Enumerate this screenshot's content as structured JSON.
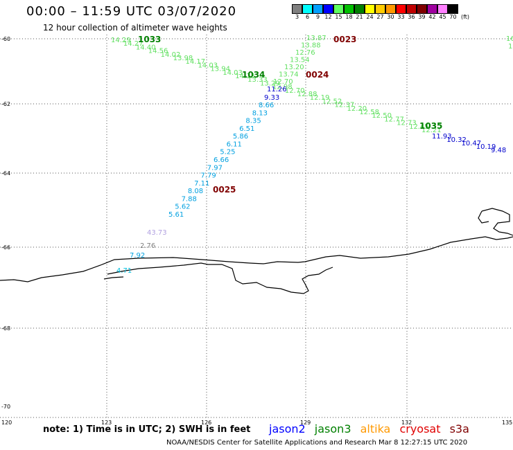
{
  "header": {
    "title": "00:00 – 11:59 UTC 03/07/2020",
    "subtitle": "12 hour collection of altimeter wave heights"
  },
  "colorbar": {
    "labels": [
      "3",
      "6",
      "9",
      "12",
      "15",
      "18",
      "21",
      "24",
      "27",
      "30",
      "33",
      "36",
      "39",
      "42",
      "45",
      "70",
      "(ft)"
    ],
    "colors": [
      "#808080",
      "#00ffff",
      "#00a0ff",
      "#0000ff",
      "#60ff60",
      "#00c000",
      "#008000",
      "#ffff00",
      "#ffcc00",
      "#ff9900",
      "#ff0000",
      "#c00000",
      "#800000",
      "#a000a0",
      "#ff80ff",
      "#000000"
    ]
  },
  "axes": {
    "lat_labels": [
      "-60",
      "-62",
      "-64",
      "-66",
      "-68",
      "-70"
    ],
    "lon_labels": [
      "120",
      "123",
      "126",
      "129",
      "132",
      "135"
    ]
  },
  "passes": [
    {
      "label": "1033",
      "color": "#008000"
    },
    {
      "label": "1034",
      "color": "#008000"
    },
    {
      "label": "1035",
      "color": "#008000"
    },
    {
      "label": "0023",
      "color": "#800000"
    },
    {
      "label": "0024",
      "color": "#800000"
    },
    {
      "label": "0025",
      "color": "#800000"
    }
  ],
  "track_green": {
    "color": "#60e060",
    "values": [
      "14.29",
      "14.27",
      "14.40",
      "14.56",
      "14.02",
      "13.98",
      "14.17",
      "14.03",
      "13.94",
      "14.03",
      "14.13",
      "13.33",
      "13.29",
      "12.98",
      "12.70",
      "12.88",
      "12.19",
      "12.52",
      "12.37",
      "12.20",
      "12.58",
      "12.50",
      "12.77",
      "12.73",
      "12.45",
      "12.21"
    ]
  },
  "track_green_blue": {
    "color": "#0000cc",
    "values": [
      "11.93",
      "10.32",
      "10.47",
      "10.19",
      "9.48"
    ]
  },
  "track_up": {
    "values": [
      "13.87",
      "13.88",
      "12.76",
      "13.54",
      "13.20",
      "13.74",
      "12.70"
    ]
  },
  "track_blue_labels": {
    "values": [
      "11.26",
      "9.33"
    ]
  },
  "track_cyan": {
    "color": "#00a0e0",
    "values": [
      "8.66",
      "8.13",
      "8.35",
      "6.51",
      "5.86",
      "6.11",
      "5.25",
      "6.66",
      "7.97",
      "7.79",
      "7.11",
      "8.08",
      "7.88",
      "5.62",
      "5.61"
    ]
  },
  "track_misc": [
    {
      "value": "43.73",
      "color": "#b0a0e0"
    },
    {
      "value": "2.76",
      "color": "#808080"
    },
    {
      "value": "7.92",
      "color": "#00a0e0"
    },
    {
      "value": "4.71",
      "color": "#00c0e0"
    }
  ],
  "edge_values": [
    "16",
    "1"
  ],
  "note": "note: 1) Time is in UTC; 2) SWH is in feet",
  "satellites": [
    {
      "name": "jason2",
      "color": "#0000ff"
    },
    {
      "name": "jason3",
      "color": "#008000"
    },
    {
      "name": "altika",
      "color": "#ff9900"
    },
    {
      "name": "cryosat",
      "color": "#e00000"
    },
    {
      "name": "s3a",
      "color": "#800000"
    }
  ],
  "footer": "NOAA/NESDIS Center for Satellite Applications and Research    Mar  8 12:27:15 UTC 2020"
}
